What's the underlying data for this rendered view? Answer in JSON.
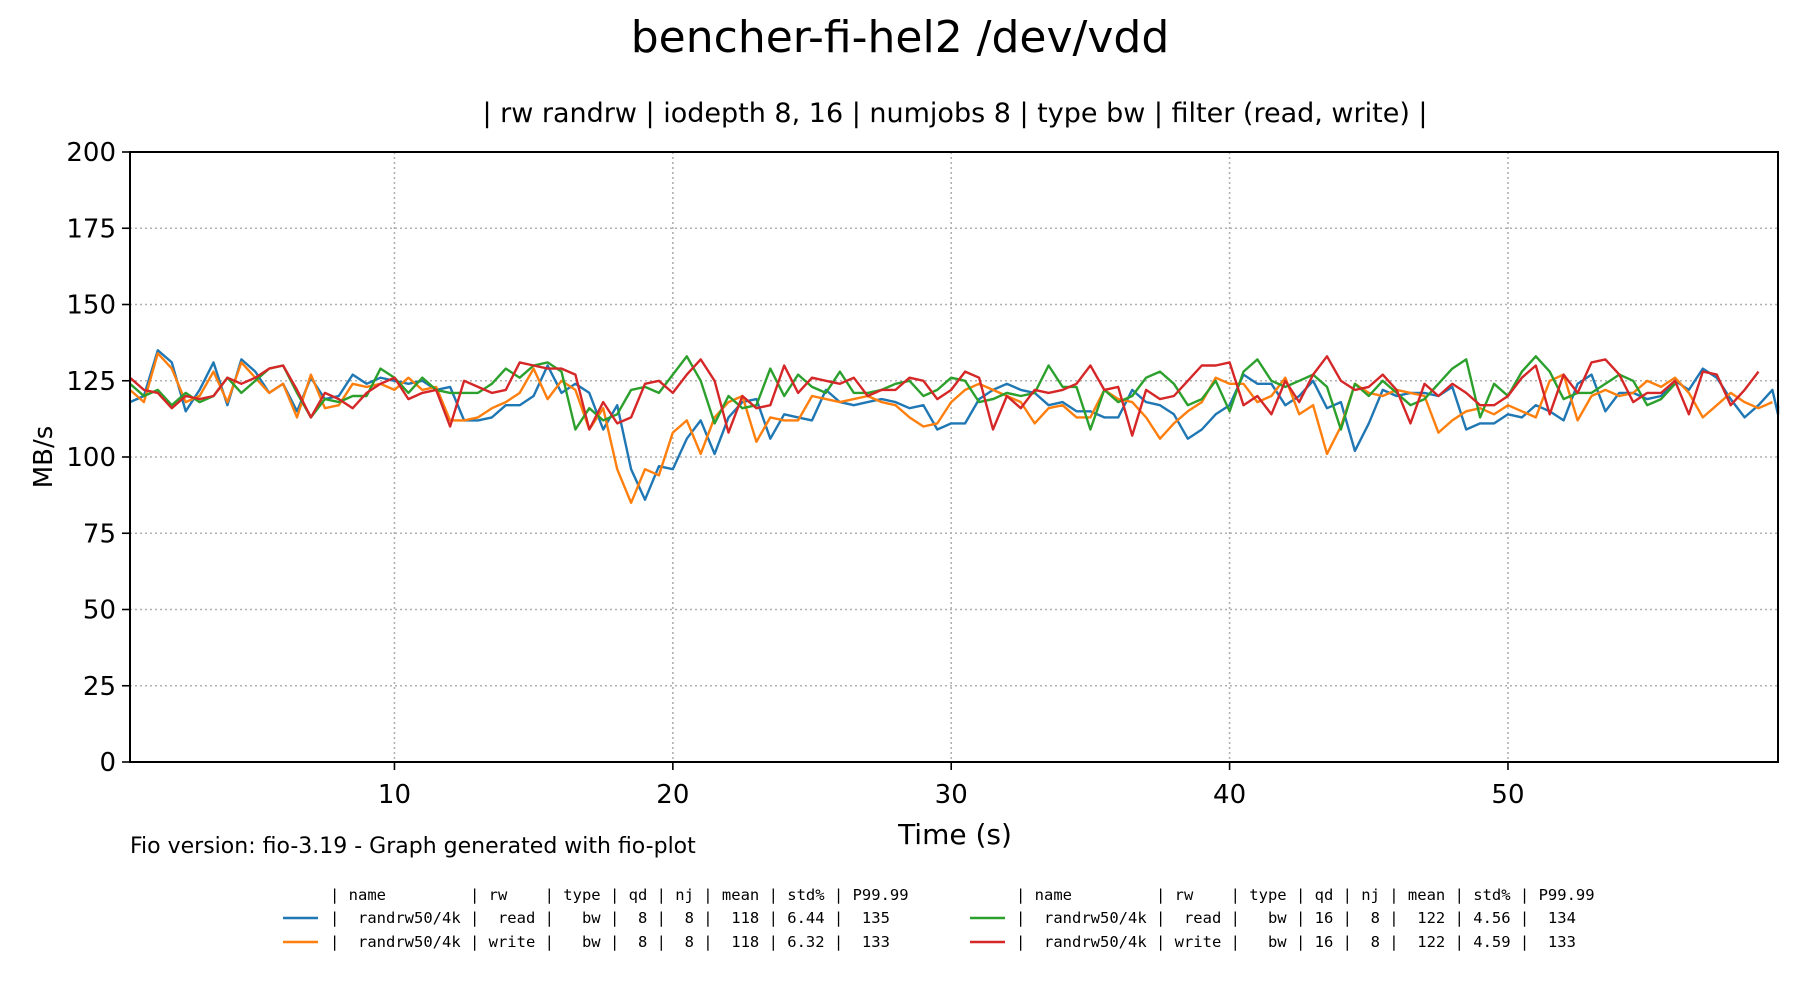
{
  "chart_data": {
    "type": "line",
    "title": "bencher-fi-hel2 /dev/vdd",
    "subtitle": "| rw randrw | iodepth 8, 16 | numjobs 8 | type bw | filter (read, write) |",
    "xlabel": "Time (s)",
    "ylabel": "MB/s",
    "xlim": [
      0.5,
      59.7
    ],
    "ylim": [
      0,
      200
    ],
    "x_ticks": [
      10,
      20,
      30,
      40,
      50
    ],
    "y_ticks": [
      0,
      25,
      50,
      75,
      100,
      125,
      150,
      175,
      200
    ],
    "grid": true,
    "footer": "Fio version: fio-3.19 - Graph generated with fio-plot",
    "x_start": 0.5,
    "x_step": 0.5,
    "series": [
      {
        "color": "#1f77b4",
        "values": [
          118,
          120,
          135,
          131,
          115,
          122,
          131,
          117,
          132,
          128,
          121,
          124,
          115,
          126,
          119,
          120,
          127,
          124,
          126,
          125,
          124,
          125,
          122,
          123,
          112,
          112,
          113,
          117,
          117,
          120,
          130,
          121,
          124,
          121,
          109,
          117,
          96,
          86,
          97,
          96,
          106,
          112,
          101,
          113,
          118,
          119,
          106,
          114,
          113,
          112,
          122,
          118,
          117,
          118,
          119,
          118,
          116,
          117,
          109,
          111,
          111,
          119,
          122,
          124,
          122,
          121,
          117,
          118,
          115,
          115,
          113,
          113,
          122,
          118,
          117,
          114,
          106,
          109,
          114,
          117,
          127,
          124,
          124,
          117,
          120,
          125,
          116,
          118,
          102,
          111,
          122,
          120,
          121,
          121,
          120,
          123,
          109,
          111,
          111,
          114,
          113,
          117,
          115,
          112,
          124,
          127,
          115,
          121,
          121,
          119,
          120,
          125,
          122,
          129,
          126,
          119,
          113,
          117,
          122,
          114,
          117
        ]
      },
      {
        "color": "#ff7f0e",
        "values": [
          122,
          118,
          134,
          129,
          118,
          120,
          128,
          118,
          131,
          126,
          121,
          124,
          113,
          127,
          116,
          117,
          124,
          123,
          124,
          122,
          126,
          122,
          123,
          112,
          112,
          113,
          116,
          118,
          121,
          129,
          119,
          125,
          122,
          109,
          116,
          96,
          85,
          96,
          94,
          108,
          112,
          101,
          113,
          118,
          120,
          105,
          113,
          112,
          112,
          120,
          119,
          118,
          119,
          120,
          118,
          117,
          113,
          110,
          111,
          118,
          122,
          124,
          122,
          120,
          118,
          111,
          116,
          117,
          113,
          113,
          122,
          119,
          118,
          113,
          106,
          111,
          115,
          118,
          126,
          124,
          124,
          118,
          120,
          126,
          114,
          117,
          101,
          110,
          124,
          121,
          120,
          122,
          121,
          120,
          108,
          112,
          115,
          116,
          114,
          117,
          115,
          113,
          125,
          127,
          112,
          120,
          122,
          120,
          121,
          125,
          123,
          126,
          121,
          113,
          117,
          121,
          118,
          116,
          118
        ]
      },
      {
        "color": "#2ca02c",
        "values": [
          124,
          120,
          122,
          117,
          121,
          118,
          120,
          126,
          121,
          125,
          129,
          130,
          121,
          113,
          119,
          118,
          120,
          120,
          129,
          126,
          121,
          126,
          122,
          121,
          121,
          121,
          124,
          129,
          126,
          130,
          131,
          128,
          109,
          116,
          112,
          114,
          122,
          123,
          121,
          127,
          133,
          125,
          111,
          120,
          116,
          117,
          129,
          120,
          127,
          123,
          121,
          128,
          121,
          121,
          122,
          124,
          125,
          120,
          122,
          126,
          125,
          118,
          119,
          121,
          120,
          121,
          130,
          123,
          123,
          109,
          122,
          118,
          120,
          126,
          128,
          124,
          117,
          119,
          125,
          115,
          128,
          132,
          125,
          123,
          125,
          127,
          123,
          109,
          124,
          120,
          125,
          121,
          117,
          119,
          124,
          129,
          132,
          113,
          124,
          120,
          128,
          133,
          128,
          119,
          121,
          121,
          124,
          127,
          125,
          117,
          119,
          124
        ]
      },
      {
        "color": "#d62728",
        "values": [
          126,
          122,
          121,
          116,
          120,
          119,
          120,
          126,
          124,
          126,
          129,
          130,
          122,
          113,
          121,
          119,
          116,
          121,
          124,
          126,
          119,
          121,
          122,
          110,
          125,
          123,
          121,
          122,
          131,
          130,
          129,
          129,
          127,
          109,
          118,
          111,
          113,
          124,
          125,
          121,
          127,
          132,
          125,
          108,
          120,
          116,
          117,
          130,
          121,
          126,
          125,
          124,
          126,
          120,
          122,
          122,
          126,
          125,
          119,
          122,
          128,
          126,
          109,
          120,
          116,
          122,
          121,
          122,
          124,
          130,
          122,
          123,
          107,
          122,
          119,
          120,
          125,
          130,
          130,
          131,
          117,
          120,
          114,
          125,
          118,
          127,
          133,
          125,
          122,
          123,
          127,
          122,
          111,
          124,
          120,
          124,
          121,
          117,
          117,
          120,
          126,
          130,
          114,
          127,
          121,
          131,
          132,
          127,
          118,
          121,
          121,
          125,
          114,
          128,
          127,
          117,
          122,
          128
        ]
      }
    ],
    "legend": {
      "header": "| name         | rw    | type | qd | nj | mean | std% | P99.99",
      "rows": [
        "|  randrw50/4k |  read |   bw |  8 |  8 |  118 | 6.44 |  135",
        "|  randrw50/4k | write |   bw |  8 |  8 |  118 | 6.32 |  133",
        "|  randrw50/4k |  read |   bw | 16 |  8 |  122 | 4.56 |  134",
        "|  randrw50/4k | write |   bw | 16 |  8 |  122 | 4.59 |  133"
      ]
    }
  }
}
